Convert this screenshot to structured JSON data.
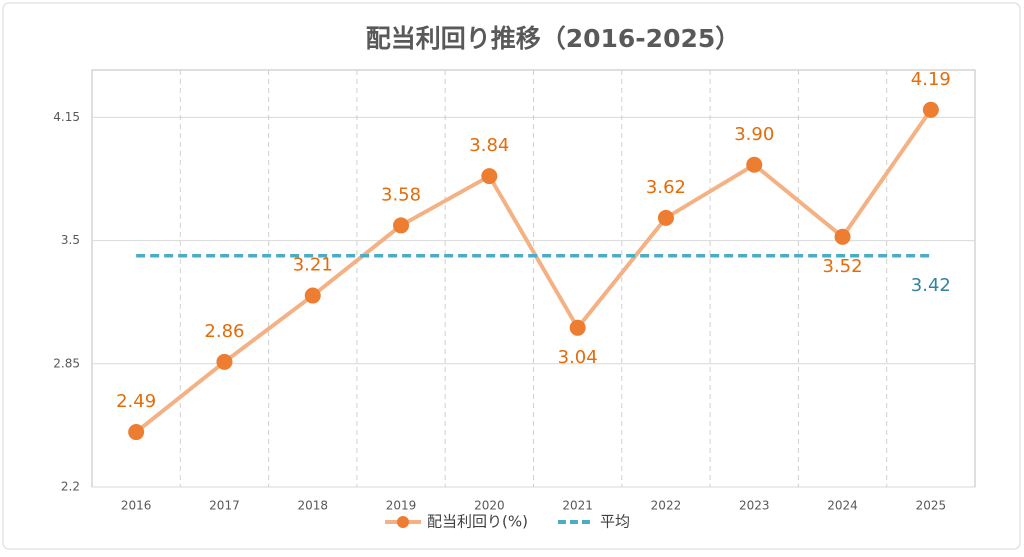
{
  "chart_data": {
    "type": "line",
    "title": "配当利回り推移（2016-2025）",
    "categories": [
      "2016",
      "2017",
      "2018",
      "2019",
      "2020",
      "2021",
      "2022",
      "2023",
      "2024",
      "2025"
    ],
    "series": [
      {
        "name": "配当利回り(%)",
        "color": "#f4b183",
        "marker_color": "#ed7d31",
        "label_color": "#e46c0a",
        "values": [
          2.49,
          2.86,
          3.21,
          3.58,
          3.84,
          3.04,
          3.62,
          3.9,
          3.52,
          4.19
        ],
        "value_labels": [
          "2.49",
          "2.86",
          "3.21",
          "3.58",
          "3.84",
          "3.04",
          "3.62",
          "3.90",
          "3.52",
          "4.19"
        ]
      },
      {
        "name": "平均",
        "color": "#4bacc6",
        "dashed": true,
        "label_color": "#31859c",
        "values": [
          3.42,
          3.42,
          3.42,
          3.42,
          3.42,
          3.42,
          3.42,
          3.42,
          3.42,
          3.42
        ],
        "value_labels": [
          null,
          null,
          null,
          null,
          null,
          null,
          null,
          null,
          null,
          "3.42"
        ]
      }
    ],
    "ylim": [
      2.2,
      4.4
    ],
    "yticks": [
      2.2,
      2.85,
      3.5,
      4.15
    ],
    "grid": true,
    "legend": "bottom"
  }
}
